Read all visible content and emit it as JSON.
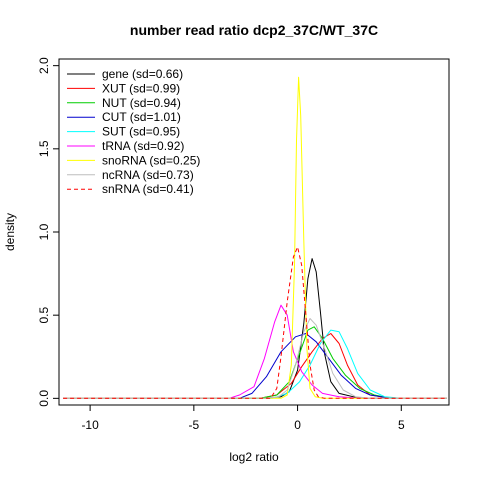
{
  "chart_data": {
    "type": "line",
    "title": "number read ratio dcp2_37C/WT_37C",
    "xlabel": "log2 ratio",
    "ylabel": "density",
    "xlim": [
      -11.5,
      7.3
    ],
    "ylim": [
      -0.04,
      2.04
    ],
    "x_ticks": [
      -10,
      -5,
      0,
      5
    ],
    "x_tick_labels": [
      "-10",
      "-5",
      "0",
      "5"
    ],
    "y_ticks": [
      0.0,
      0.5,
      1.0,
      1.5,
      2.0
    ],
    "y_tick_labels": [
      "0.0",
      "0.5",
      "1.0",
      "1.5",
      "2.0"
    ],
    "grid": false,
    "legend_position": "top-left",
    "series": [
      {
        "name": "gene (sd=0.66)",
        "color": "#000000",
        "dash": false,
        "points": [
          [
            -11.3,
            0
          ],
          [
            -1.5,
            0
          ],
          [
            -0.8,
            0.01
          ],
          [
            -0.4,
            0.04
          ],
          [
            0.0,
            0.17
          ],
          [
            0.3,
            0.45
          ],
          [
            0.5,
            0.72
          ],
          [
            0.7,
            0.84
          ],
          [
            0.9,
            0.76
          ],
          [
            1.1,
            0.52
          ],
          [
            1.3,
            0.27
          ],
          [
            1.6,
            0.1
          ],
          [
            2.0,
            0.03
          ],
          [
            3.0,
            0
          ],
          [
            7.2,
            0
          ]
        ]
      },
      {
        "name": "XUT (sd=0.99)",
        "color": "#ff0000",
        "dash": false,
        "points": [
          [
            -11.3,
            0
          ],
          [
            -1.8,
            0
          ],
          [
            -1.0,
            0.02
          ],
          [
            -0.3,
            0.09
          ],
          [
            0.2,
            0.19
          ],
          [
            0.7,
            0.28
          ],
          [
            1.2,
            0.36
          ],
          [
            1.6,
            0.39
          ],
          [
            2.0,
            0.33
          ],
          [
            2.4,
            0.2
          ],
          [
            2.9,
            0.08
          ],
          [
            3.5,
            0.02
          ],
          [
            4.5,
            0
          ],
          [
            7.2,
            0
          ]
        ]
      },
      {
        "name": "NUT (sd=0.94)",
        "color": "#00cd00",
        "dash": false,
        "points": [
          [
            -11.3,
            0
          ],
          [
            -1.8,
            0
          ],
          [
            -1.0,
            0.02
          ],
          [
            -0.4,
            0.1
          ],
          [
            0.1,
            0.27
          ],
          [
            0.5,
            0.41
          ],
          [
            0.8,
            0.43
          ],
          [
            1.2,
            0.36
          ],
          [
            1.7,
            0.24
          ],
          [
            2.3,
            0.14
          ],
          [
            3.0,
            0.06
          ],
          [
            3.7,
            0.02
          ],
          [
            4.5,
            0
          ],
          [
            7.2,
            0
          ]
        ]
      },
      {
        "name": "CUT (sd=1.01)",
        "color": "#0000cd",
        "dash": false,
        "points": [
          [
            -11.3,
            0
          ],
          [
            -2.8,
            0
          ],
          [
            -2.2,
            0.03
          ],
          [
            -1.5,
            0.13
          ],
          [
            -0.8,
            0.28
          ],
          [
            -0.1,
            0.37
          ],
          [
            0.4,
            0.39
          ],
          [
            0.9,
            0.34
          ],
          [
            1.5,
            0.24
          ],
          [
            2.1,
            0.14
          ],
          [
            2.8,
            0.06
          ],
          [
            3.5,
            0.02
          ],
          [
            4.5,
            0
          ],
          [
            7.2,
            0
          ]
        ]
      },
      {
        "name": "SUT (sd=0.95)",
        "color": "#00ffff",
        "dash": false,
        "points": [
          [
            -11.3,
            0
          ],
          [
            -1.2,
            0
          ],
          [
            -0.5,
            0.03
          ],
          [
            0.1,
            0.1
          ],
          [
            0.6,
            0.2
          ],
          [
            1.1,
            0.33
          ],
          [
            1.6,
            0.41
          ],
          [
            2.0,
            0.4
          ],
          [
            2.4,
            0.3
          ],
          [
            2.9,
            0.15
          ],
          [
            3.5,
            0.05
          ],
          [
            4.2,
            0.01
          ],
          [
            5.0,
            0
          ],
          [
            7.2,
            0
          ]
        ]
      },
      {
        "name": "tRNA (sd=0.92)",
        "color": "#ff00ff",
        "dash": false,
        "points": [
          [
            -11.3,
            0
          ],
          [
            -3.3,
            0
          ],
          [
            -2.8,
            0.02
          ],
          [
            -2.1,
            0.07
          ],
          [
            -1.6,
            0.24
          ],
          [
            -1.1,
            0.46
          ],
          [
            -0.8,
            0.56
          ],
          [
            -0.5,
            0.5
          ],
          [
            -0.2,
            0.28
          ],
          [
            0.2,
            0.16
          ],
          [
            0.7,
            0.08
          ],
          [
            1.2,
            0.03
          ],
          [
            2.0,
            0.01
          ],
          [
            3.0,
            0
          ],
          [
            7.2,
            0
          ]
        ]
      },
      {
        "name": "snoRNA (sd=0.25)",
        "color": "#ffff00",
        "dash": false,
        "points": [
          [
            -11.3,
            0
          ],
          [
            -0.8,
            0
          ],
          [
            -0.5,
            0.02
          ],
          [
            -0.3,
            0.2
          ],
          [
            -0.15,
            0.8
          ],
          [
            -0.05,
            1.55
          ],
          [
            0.05,
            1.93
          ],
          [
            0.15,
            1.7
          ],
          [
            0.3,
            0.95
          ],
          [
            0.45,
            0.3
          ],
          [
            0.6,
            0.06
          ],
          [
            0.85,
            0.01
          ],
          [
            1.2,
            0
          ],
          [
            7.2,
            0
          ]
        ]
      },
      {
        "name": "ncRNA (sd=0.73)",
        "color": "#bebebe",
        "dash": false,
        "points": [
          [
            -11.3,
            0
          ],
          [
            -1.5,
            0
          ],
          [
            -0.9,
            0.01
          ],
          [
            -0.5,
            0.05
          ],
          [
            -0.1,
            0.2
          ],
          [
            0.3,
            0.4
          ],
          [
            0.6,
            0.48
          ],
          [
            0.9,
            0.44
          ],
          [
            1.3,
            0.3
          ],
          [
            1.7,
            0.15
          ],
          [
            2.2,
            0.05
          ],
          [
            2.8,
            0.01
          ],
          [
            3.5,
            0
          ],
          [
            7.2,
            0
          ]
        ]
      },
      {
        "name": "snRNA (sd=0.41)",
        "color": "#ff0000",
        "dash": true,
        "points": [
          [
            -11.3,
            0
          ],
          [
            -1.3,
            0
          ],
          [
            -1.0,
            0.06
          ],
          [
            -0.8,
            0.25
          ],
          [
            -0.5,
            0.58
          ],
          [
            -0.2,
            0.85
          ],
          [
            0.0,
            0.91
          ],
          [
            0.2,
            0.8
          ],
          [
            0.4,
            0.5
          ],
          [
            0.6,
            0.2
          ],
          [
            0.8,
            0.05
          ],
          [
            1.0,
            0.01
          ],
          [
            1.3,
            0
          ],
          [
            7.2,
            0
          ]
        ]
      }
    ]
  }
}
